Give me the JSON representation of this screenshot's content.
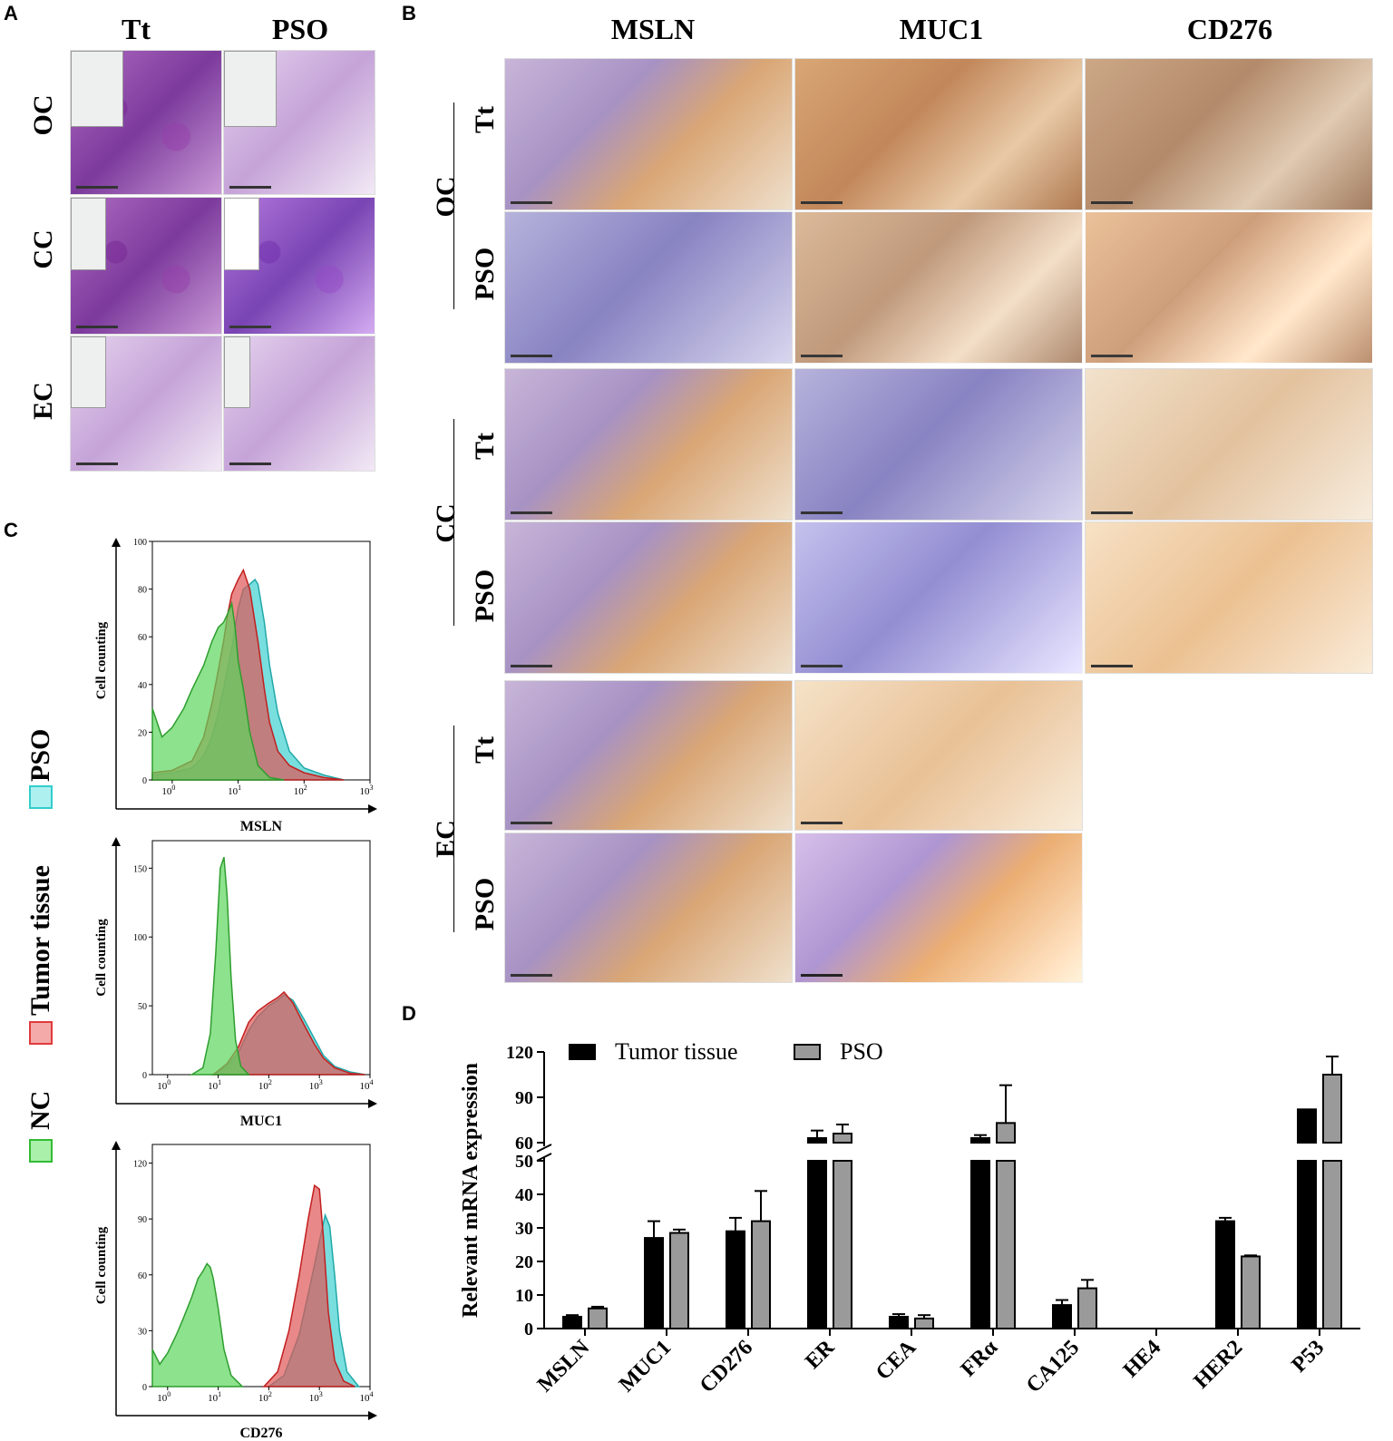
{
  "panels": {
    "a": "A",
    "b": "B",
    "c": "C",
    "d": "D"
  },
  "panel_a": {
    "col_headers": [
      "Tt",
      "PSO"
    ],
    "row_labels": [
      "OC",
      "CC",
      "EC"
    ]
  },
  "panel_b": {
    "col_headers": [
      "MSLN",
      "MUC1",
      "CD276"
    ],
    "groups": [
      "OC",
      "CC",
      "EC"
    ],
    "sub_rows": [
      "Tt",
      "PSO"
    ]
  },
  "panel_c": {
    "legend": [
      {
        "label": "PSO",
        "color": "#33cccc"
      },
      {
        "label": "Tumor tissue",
        "color": "#e03b3b"
      },
      {
        "label": "NC",
        "color": "#33bb33"
      }
    ],
    "ylabel": "Cell counting",
    "colors": {
      "nc": "#5cd65c",
      "tumor": "#e05555",
      "pso": "#40d0d0"
    }
  },
  "chart_data": [
    {
      "type": "area",
      "xlabel": "MSLN",
      "ylabel": "Cell counting",
      "x_scale": "log",
      "xlim": [
        0.5,
        1000
      ],
      "ylim": [
        0,
        100
      ],
      "xticks": [
        "10^0",
        "10^1",
        "10^2",
        "10^3"
      ],
      "yticks": [
        0,
        20,
        40,
        60,
        80,
        100
      ],
      "series": [
        {
          "name": "NC",
          "points": [
            [
              0.5,
              30
            ],
            [
              0.7,
              18
            ],
            [
              1,
              22
            ],
            [
              1.5,
              30
            ],
            [
              2,
              38
            ],
            [
              3,
              48
            ],
            [
              4,
              58
            ],
            [
              5,
              64
            ],
            [
              6,
              66
            ],
            [
              7,
              70
            ],
            [
              8,
              74
            ],
            [
              9,
              64
            ],
            [
              10,
              50
            ],
            [
              12,
              38
            ],
            [
              15,
              20
            ],
            [
              20,
              6
            ],
            [
              30,
              1
            ],
            [
              50,
              0
            ]
          ]
        },
        {
          "name": "Tumor tissue",
          "points": [
            [
              0.5,
              3
            ],
            [
              1,
              4
            ],
            [
              2,
              8
            ],
            [
              3,
              18
            ],
            [
              4,
              32
            ],
            [
              5,
              46
            ],
            [
              6,
              58
            ],
            [
              7,
              70
            ],
            [
              8,
              78
            ],
            [
              10,
              84
            ],
            [
              12,
              88
            ],
            [
              15,
              80
            ],
            [
              20,
              58
            ],
            [
              25,
              38
            ],
            [
              30,
              24
            ],
            [
              40,
              12
            ],
            [
              60,
              6
            ],
            [
              100,
              3
            ],
            [
              200,
              1
            ],
            [
              400,
              0
            ]
          ]
        },
        {
          "name": "PSO",
          "points": [
            [
              0.5,
              2
            ],
            [
              1,
              3
            ],
            [
              2,
              5
            ],
            [
              3,
              10
            ],
            [
              4,
              18
            ],
            [
              5,
              28
            ],
            [
              6,
              38
            ],
            [
              8,
              55
            ],
            [
              10,
              72
            ],
            [
              12,
              80
            ],
            [
              15,
              82
            ],
            [
              18,
              84
            ],
            [
              20,
              82
            ],
            [
              25,
              66
            ],
            [
              30,
              48
            ],
            [
              40,
              28
            ],
            [
              60,
              12
            ],
            [
              100,
              5
            ],
            [
              200,
              2
            ],
            [
              400,
              0
            ]
          ]
        }
      ]
    },
    {
      "type": "area",
      "xlabel": "MUC1",
      "ylabel": "Cell counting",
      "x_scale": "log",
      "xlim": [
        0.5,
        10000
      ],
      "ylim": [
        0,
        170
      ],
      "xticks": [
        "10^0",
        "10^1",
        "10^2",
        "10^3",
        "10^4"
      ],
      "yticks": [
        0,
        50,
        100,
        150
      ],
      "series": [
        {
          "name": "NC",
          "points": [
            [
              3,
              0
            ],
            [
              5,
              5
            ],
            [
              7,
              30
            ],
            [
              9,
              90
            ],
            [
              11,
              150
            ],
            [
              13,
              158
            ],
            [
              15,
              130
            ],
            [
              18,
              70
            ],
            [
              22,
              25
            ],
            [
              28,
              6
            ],
            [
              40,
              0
            ]
          ]
        },
        {
          "name": "Tumor tissue",
          "points": [
            [
              8,
              0
            ],
            [
              15,
              8
            ],
            [
              25,
              20
            ],
            [
              40,
              38
            ],
            [
              60,
              46
            ],
            [
              100,
              52
            ],
            [
              150,
              56
            ],
            [
              200,
              60
            ],
            [
              300,
              52
            ],
            [
              500,
              36
            ],
            [
              800,
              22
            ],
            [
              1200,
              12
            ],
            [
              2000,
              5
            ],
            [
              4000,
              1
            ],
            [
              8000,
              0
            ]
          ]
        },
        {
          "name": "PSO",
          "points": [
            [
              8,
              0
            ],
            [
              15,
              6
            ],
            [
              25,
              16
            ],
            [
              40,
              32
            ],
            [
              60,
              42
            ],
            [
              100,
              50
            ],
            [
              150,
              54
            ],
            [
              200,
              58
            ],
            [
              300,
              54
            ],
            [
              500,
              40
            ],
            [
              800,
              26
            ],
            [
              1200,
              14
            ],
            [
              2000,
              6
            ],
            [
              4000,
              2
            ],
            [
              8000,
              0
            ]
          ]
        }
      ]
    },
    {
      "type": "area",
      "xlabel": "CD276",
      "ylabel": "Cell counting",
      "x_scale": "log",
      "xlim": [
        0.5,
        10000
      ],
      "ylim": [
        0,
        130
      ],
      "xticks": [
        "10^0",
        "10^1",
        "10^2",
        "10^3",
        "10^4"
      ],
      "yticks": [
        0,
        30,
        60,
        90,
        120
      ],
      "series": [
        {
          "name": "NC",
          "points": [
            [
              0.5,
              20
            ],
            [
              0.7,
              12
            ],
            [
              1,
              18
            ],
            [
              1.5,
              28
            ],
            [
              2,
              36
            ],
            [
              3,
              48
            ],
            [
              4,
              58
            ],
            [
              5,
              62
            ],
            [
              6,
              66
            ],
            [
              7,
              64
            ],
            [
              8,
              58
            ],
            [
              10,
              42
            ],
            [
              13,
              20
            ],
            [
              18,
              6
            ],
            [
              30,
              0
            ]
          ]
        },
        {
          "name": "Tumor tissue",
          "points": [
            [
              80,
              0
            ],
            [
              150,
              8
            ],
            [
              250,
              30
            ],
            [
              400,
              60
            ],
            [
              600,
              90
            ],
            [
              800,
              108
            ],
            [
              1000,
              106
            ],
            [
              1200,
              80
            ],
            [
              1500,
              40
            ],
            [
              2000,
              14
            ],
            [
              3000,
              3
            ],
            [
              5000,
              0
            ]
          ]
        },
        {
          "name": "PSO",
          "points": [
            [
              100,
              0
            ],
            [
              200,
              6
            ],
            [
              400,
              28
            ],
            [
              700,
              58
            ],
            [
              1000,
              78
            ],
            [
              1300,
              92
            ],
            [
              1600,
              86
            ],
            [
              2000,
              60
            ],
            [
              2500,
              30
            ],
            [
              3500,
              8
            ],
            [
              6000,
              0
            ]
          ]
        }
      ]
    },
    {
      "type": "bar",
      "ylabel": "Relevant mRNA expression",
      "categories": [
        "MSLN",
        "MUC1",
        "CD276",
        "ER",
        "CEA",
        "FRα",
        "CA125",
        "HE4",
        "HER2",
        "P53"
      ],
      "y_axis_break": [
        50,
        60
      ],
      "yticks_lower": [
        0,
        10,
        20,
        30,
        40,
        50
      ],
      "yticks_upper": [
        60,
        90,
        120
      ],
      "legend_placement": "top-left",
      "series": [
        {
          "name": "Tumor tissue",
          "color": "#000000",
          "values": [
            3.5,
            27,
            29,
            63,
            3.5,
            63,
            7,
            0,
            32,
            82
          ],
          "errors": [
            0.5,
            5,
            4,
            5,
            0.8,
            2,
            1.5,
            0,
            1,
            0
          ]
        },
        {
          "name": "PSO",
          "color": "#999999",
          "values": [
            6,
            28.5,
            32,
            66,
            3,
            73,
            12,
            0,
            21.5,
            105
          ],
          "errors": [
            0.5,
            1,
            9,
            6,
            1,
            25,
            2.5,
            0,
            0.3,
            12
          ]
        }
      ]
    }
  ]
}
